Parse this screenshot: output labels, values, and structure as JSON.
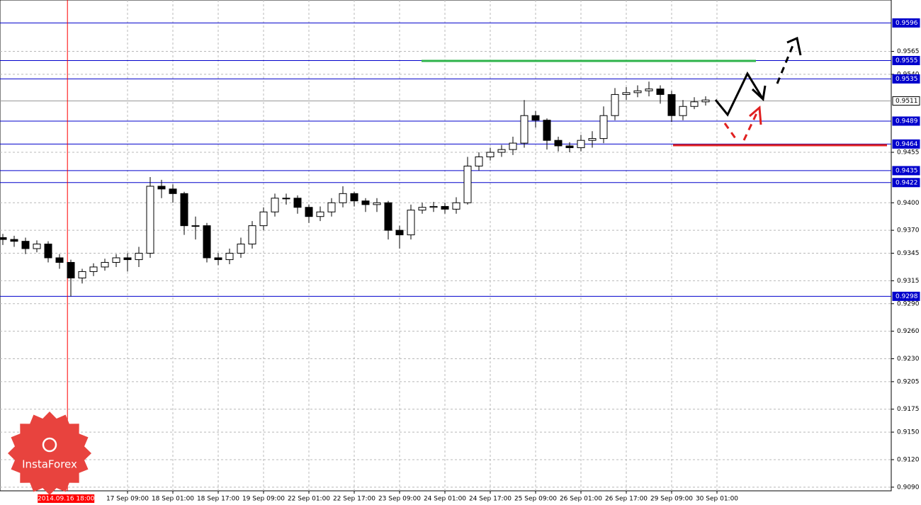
{
  "chart_data": {
    "type": "candlestick",
    "candles": {
      "open": [
        0.9362,
        0.936,
        0.9358,
        0.935,
        0.9355,
        0.934,
        0.9335,
        0.9318,
        0.9325,
        0.933,
        0.9335,
        0.934,
        0.9338,
        0.9345,
        0.9418,
        0.9415,
        0.941,
        0.9375,
        0.9375,
        0.934,
        0.9338,
        0.9345,
        0.9355,
        0.9375,
        0.939,
        0.9405,
        0.9405,
        0.9395,
        0.9385,
        0.939,
        0.94,
        0.941,
        0.9402,
        0.9398,
        0.94,
        0.937,
        0.9365,
        0.9392,
        0.9395,
        0.9396,
        0.9393,
        0.94,
        0.944,
        0.945,
        0.9455,
        0.9458,
        0.9465,
        0.9495,
        0.949,
        0.9468,
        0.9462,
        0.946,
        0.9468,
        0.947,
        0.9495,
        0.9518,
        0.952,
        0.9522,
        0.9524,
        0.9518,
        0.9495,
        0.9505,
        0.951
      ],
      "high": [
        0.9366,
        0.9364,
        0.9362,
        0.9359,
        0.9358,
        0.9344,
        0.9338,
        0.9328,
        0.9334,
        0.9339,
        0.9344,
        0.9345,
        0.9352,
        0.9428,
        0.9425,
        0.942,
        0.9412,
        0.9385,
        0.9378,
        0.9345,
        0.935,
        0.9362,
        0.938,
        0.9395,
        0.941,
        0.941,
        0.9408,
        0.9398,
        0.9396,
        0.9405,
        0.9418,
        0.9412,
        0.9405,
        0.9405,
        0.9402,
        0.9375,
        0.9398,
        0.94,
        0.9401,
        0.94,
        0.9406,
        0.945,
        0.9455,
        0.946,
        0.9463,
        0.9472,
        0.9512,
        0.95,
        0.9492,
        0.9472,
        0.9466,
        0.9474,
        0.9478,
        0.9505,
        0.9525,
        0.9526,
        0.9528,
        0.9532,
        0.9528,
        0.9522,
        0.9512,
        0.9515,
        0.9516
      ],
      "low": [
        0.9354,
        0.9352,
        0.9344,
        0.9346,
        0.9335,
        0.9328,
        0.9298,
        0.9312,
        0.932,
        0.9326,
        0.933,
        0.9325,
        0.933,
        0.934,
        0.9405,
        0.94,
        0.9365,
        0.936,
        0.9335,
        0.9332,
        0.9333,
        0.934,
        0.935,
        0.937,
        0.9385,
        0.9398,
        0.9388,
        0.9378,
        0.938,
        0.9385,
        0.9395,
        0.9396,
        0.939,
        0.939,
        0.936,
        0.935,
        0.936,
        0.9388,
        0.939,
        0.9388,
        0.9388,
        0.9398,
        0.9435,
        0.9446,
        0.945,
        0.9452,
        0.946,
        0.9482,
        0.9458,
        0.9456,
        0.9455,
        0.9456,
        0.946,
        0.9465,
        0.949,
        0.9512,
        0.9515,
        0.9516,
        0.9508,
        0.9488,
        0.949,
        0.9502,
        0.9506
      ],
      "close": [
        0.936,
        0.9358,
        0.935,
        0.9355,
        0.934,
        0.9335,
        0.9318,
        0.9325,
        0.933,
        0.9335,
        0.934,
        0.9338,
        0.9345,
        0.9418,
        0.9415,
        0.941,
        0.9375,
        0.9375,
        0.934,
        0.9338,
        0.9345,
        0.9355,
        0.9375,
        0.939,
        0.9405,
        0.9405,
        0.9395,
        0.9385,
        0.939,
        0.94,
        0.941,
        0.9402,
        0.9398,
        0.94,
        0.937,
        0.9365,
        0.9392,
        0.9395,
        0.9396,
        0.9393,
        0.94,
        0.944,
        0.945,
        0.9455,
        0.9458,
        0.9465,
        0.9495,
        0.949,
        0.9468,
        0.9462,
        0.946,
        0.9468,
        0.947,
        0.9495,
        0.9518,
        0.952,
        0.9522,
        0.9524,
        0.9518,
        0.9495,
        0.9505,
        0.951,
        0.9512
      ]
    },
    "xlim": [
      -0.25,
      78.375
    ],
    "ylim": [
      0.9086,
      0.9621
    ],
    "yticks": [
      0.9565,
      {
        "value": 0.954,
        "label": "0.9540"
      },
      0.9455,
      {
        "value": 0.94,
        "label": "0.9400"
      },
      {
        "value": 0.937,
        "label": "0.9370"
      },
      0.9345,
      0.9315,
      {
        "value": 0.929,
        "label": "0.9290"
      },
      {
        "value": 0.926,
        "label": "0.9260"
      },
      {
        "value": 0.923,
        "label": "0.9230"
      },
      0.9205,
      0.9175,
      {
        "value": 0.915,
        "label": "0.9150"
      },
      {
        "value": 0.912,
        "label": "0.9120"
      },
      {
        "value": 0.909,
        "label": "0.9090"
      }
    ],
    "xticks": [
      {
        "value": 11,
        "label": "17 Sep 09:00"
      },
      {
        "value": 15,
        "label": "18 Sep 01:00"
      },
      {
        "value": 19,
        "label": "18 Sep 17:00"
      },
      {
        "value": 23,
        "label": "19 Sep 09:00"
      },
      {
        "value": 27,
        "label": "22 Sep 01:00"
      },
      {
        "value": 31,
        "label": "22 Sep 17:00"
      },
      {
        "value": 35,
        "label": "23 Sep 09:00"
      },
      {
        "value": 39,
        "label": "24 Sep 01:00"
      },
      {
        "value": 43,
        "label": "24 Sep 17:00"
      },
      {
        "value": 47,
        "label": "25 Sep 09:00"
      },
      {
        "value": 51,
        "label": "26 Sep 01:00"
      },
      {
        "value": 55,
        "label": "26 Sep 17:00"
      },
      {
        "value": 59,
        "label": "29 Sep 09:00"
      },
      {
        "value": 63,
        "label": "30 Sep 01:00"
      }
    ],
    "grid": true,
    "hlines": [
      {
        "value": 0.9596,
        "color": "#0000cc"
      },
      {
        "value": 0.9555,
        "color": "#0000cc"
      },
      {
        "value": 0.9535,
        "color": "#0000cc"
      },
      {
        "value": 0.9511,
        "color": "#999999"
      },
      {
        "value": 0.9489,
        "color": "#0000cc"
      },
      {
        "value": 0.9464,
        "color": "#0000cc"
      },
      {
        "value": 0.9435,
        "color": "#0000cc"
      },
      {
        "value": 0.9422,
        "color": "#0000cc"
      },
      {
        "value": 0.9298,
        "color": "#0000cc"
      }
    ],
    "vline": {
      "value": 5.7,
      "label": "2014.09.16 18:00",
      "color": "#ff0000"
    },
    "logo": "InstaForex"
  }
}
